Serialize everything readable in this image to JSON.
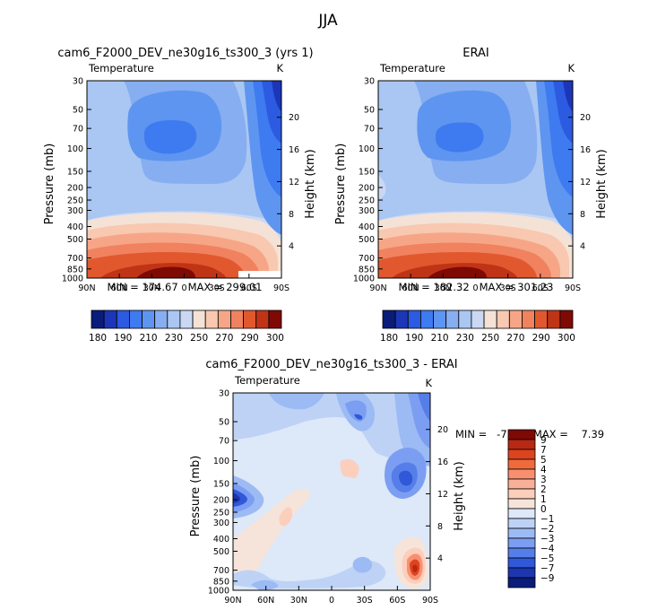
{
  "season_title": "JJA",
  "panels": [
    {
      "key": "model",
      "title": "cam6_F2000_DEV_ne30g16_ts300_3 (yrs 1)",
      "left_label": "Temperature",
      "right_label": "K",
      "stats": "MIN = 174.67   MAX = 299.01"
    },
    {
      "key": "obs",
      "title": "ERAI",
      "left_label": "Temperature",
      "right_label": "K",
      "stats": "MIN = 182.32   MAX = 301.23"
    },
    {
      "key": "diff",
      "title": "cam6_F2000_DEV_ne30g16_ts300_3 - ERAI",
      "left_label": "Temperature",
      "right_label": "K",
      "stats": "MIN =   -7.65   MAX =    7.39"
    }
  ],
  "axes": {
    "ylabel": "Pressure (mb)",
    "y2label": "Height (km)",
    "pressure_ticks": [
      "30",
      "50",
      "70",
      "100",
      "150",
      "200",
      "250",
      "300",
      "400",
      "500",
      "700",
      "850",
      "1000"
    ],
    "latitude_ticks": [
      "90N",
      "60N",
      "30N",
      "0",
      "30S",
      "60S",
      "90S"
    ],
    "height_ticks": [
      "4",
      "8",
      "12",
      "16",
      "20"
    ]
  },
  "colorbars": {
    "abs_labels": [
      "180",
      "190",
      "210",
      "230",
      "250",
      "270",
      "290",
      "300"
    ],
    "abs_colors": [
      "#0a1c7a",
      "#1c36b8",
      "#2c5ae0",
      "#3e7af0",
      "#5e95f0",
      "#86aef0",
      "#aac6f2",
      "#cad8f4",
      "#f5e2d6",
      "#f8c8b0",
      "#f6a686",
      "#f08260",
      "#e2582e",
      "#c03416",
      "#7f0a04"
    ],
    "diff_labels": [
      "9",
      "7",
      "5",
      "4",
      "3",
      "2",
      "1",
      "0",
      "−1",
      "−2",
      "−3",
      "−4",
      "−5",
      "−7",
      "−9"
    ],
    "diff_colors": [
      "#7f0a04",
      "#b82812",
      "#dc4420",
      "#f06a3c",
      "#f89070",
      "#fab098",
      "#fccebc",
      "#f6e4da",
      "#dde8f8",
      "#bed2f6",
      "#9cbaf4",
      "#7c9ef2",
      "#567ee8",
      "#3058d8",
      "#1c36b0",
      "#0a1c7a"
    ]
  },
  "chart_data": [
    {
      "type": "heatmap",
      "title": "cam6_F2000_DEV_ne30g16_ts300_3 (yrs 1)",
      "subtitle": "Temperature",
      "units": "K",
      "xlabel": "",
      "ylabel": "Pressure (mb)",
      "y2label": "Height (km)",
      "x_ticks": [
        "90N",
        "60N",
        "30N",
        "0",
        "30S",
        "60S",
        "90S"
      ],
      "y_ticks_mb": [
        30,
        50,
        70,
        100,
        150,
        200,
        250,
        300,
        400,
        500,
        700,
        850,
        1000
      ],
      "y_log": true,
      "ylim_mb": [
        1000,
        30
      ],
      "min": 174.67,
      "max": 299.01,
      "levels": [
        180,
        190,
        200,
        210,
        220,
        230,
        240,
        250,
        260,
        270,
        280,
        290,
        300
      ]
    },
    {
      "type": "heatmap",
      "title": "ERAI",
      "subtitle": "Temperature",
      "units": "K",
      "xlabel": "",
      "ylabel": "Pressure (mb)",
      "y2label": "Height (km)",
      "x_ticks": [
        "90N",
        "60N",
        "30N",
        "0",
        "30S",
        "60S",
        "90S"
      ],
      "y_ticks_mb": [
        30,
        50,
        70,
        100,
        150,
        200,
        250,
        300,
        400,
        500,
        700,
        850,
        1000
      ],
      "y_log": true,
      "ylim_mb": [
        1000,
        30
      ],
      "min": 182.32,
      "max": 301.23,
      "levels": [
        180,
        190,
        200,
        210,
        220,
        230,
        240,
        250,
        260,
        270,
        280,
        290,
        300
      ]
    },
    {
      "type": "heatmap",
      "title": "cam6_F2000_DEV_ne30g16_ts300_3 - ERAI",
      "subtitle": "Temperature",
      "units": "K",
      "xlabel": "",
      "ylabel": "Pressure (mb)",
      "y2label": "Height (km)",
      "x_ticks": [
        "90N",
        "60N",
        "30N",
        "0",
        "30S",
        "60S",
        "90S"
      ],
      "y_ticks_mb": [
        30,
        50,
        70,
        100,
        150,
        200,
        250,
        300,
        400,
        500,
        700,
        850,
        1000
      ],
      "y_log": true,
      "ylim_mb": [
        1000,
        30
      ],
      "min": -7.65,
      "max": 7.39,
      "levels": [
        -9,
        -7,
        -5,
        -4,
        -3,
        -2,
        -1,
        0,
        1,
        2,
        3,
        4,
        5,
        7,
        9
      ]
    }
  ]
}
